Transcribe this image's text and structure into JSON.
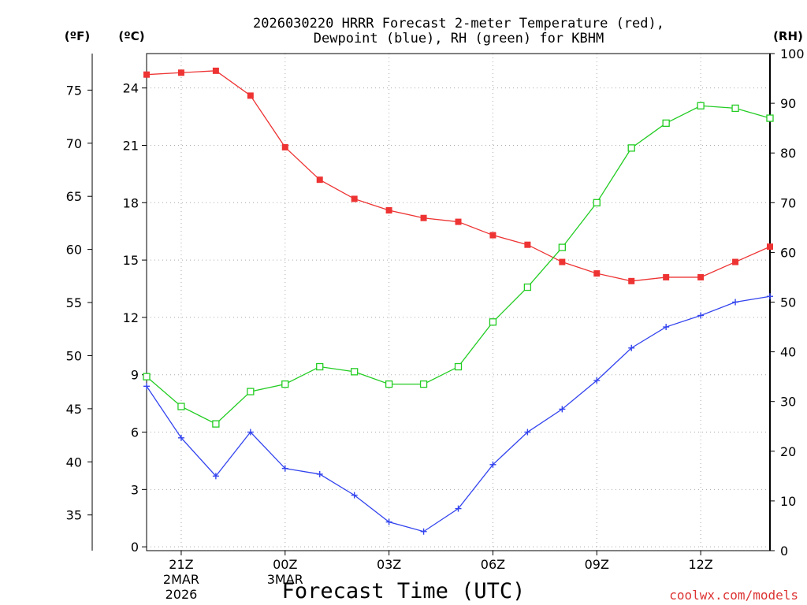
{
  "chart_data": {
    "type": "line",
    "title_line1": "2026030220 HRRR Forecast 2-meter Temperature (red),",
    "title_line2": "Dewpoint (blue), RH (green) for KBHM",
    "xlabel": "Forecast Time (UTC)",
    "watermark": "coolwx.com/models",
    "unit_labels": {
      "fahrenheit": "(ºF)",
      "celsius": "(ºC)",
      "rh": "(RH)"
    },
    "x_hours": [
      20,
      21,
      22,
      23,
      24,
      25,
      26,
      27,
      28,
      29,
      30,
      31,
      32,
      33,
      34,
      35,
      36,
      37,
      38
    ],
    "x_range": [
      20,
      38
    ],
    "x_ticks": [
      {
        "hour": 21,
        "label": "21Z",
        "sub1": "2MAR",
        "sub2": "2026"
      },
      {
        "hour": 24,
        "label": "00Z",
        "sub1": "3MAR",
        "sub2": ""
      },
      {
        "hour": 27,
        "label": "03Z",
        "sub1": "",
        "sub2": ""
      },
      {
        "hour": 30,
        "label": "06Z",
        "sub1": "",
        "sub2": ""
      },
      {
        "hour": 33,
        "label": "09Z",
        "sub1": "",
        "sub2": ""
      },
      {
        "hour": 36,
        "label": "12Z",
        "sub1": "",
        "sub2": ""
      }
    ],
    "celsius_range": [
      -0.2,
      25.8
    ],
    "celsius_ticks": [
      0,
      3,
      6,
      9,
      12,
      15,
      18,
      21,
      24
    ],
    "fahrenheit_ticks": [
      35,
      40,
      45,
      50,
      55,
      60,
      65,
      70,
      75
    ],
    "rh_range": [
      0,
      100
    ],
    "rh_ticks": [
      0,
      10,
      20,
      30,
      40,
      50,
      60,
      70,
      80,
      90,
      100
    ],
    "series": [
      {
        "name": "Temperature",
        "color": "#ee3333",
        "marker": "filled-square",
        "axis": "celsius",
        "values": [
          24.7,
          24.8,
          24.9,
          23.6,
          20.9,
          19.2,
          18.2,
          17.6,
          17.2,
          17.0,
          16.3,
          15.8,
          14.9,
          14.3,
          13.9,
          14.1,
          14.1,
          14.9,
          15.7
        ]
      },
      {
        "name": "Dewpoint",
        "color": "#3344ee",
        "marker": "plus",
        "axis": "celsius",
        "values": [
          8.4,
          5.7,
          3.7,
          6.0,
          4.1,
          3.8,
          2.7,
          1.3,
          0.8,
          2.0,
          4.3,
          6.0,
          7.2,
          8.7,
          10.4,
          11.5,
          12.1,
          12.8,
          13.1
        ]
      },
      {
        "name": "RH",
        "color": "#22cc22",
        "marker": "open-square",
        "axis": "rh",
        "values": [
          35,
          29,
          25.5,
          32,
          33.5,
          37,
          36,
          33.5,
          33.5,
          37,
          46,
          53,
          61,
          70,
          81,
          86,
          89.5,
          89,
          87
        ]
      }
    ]
  }
}
